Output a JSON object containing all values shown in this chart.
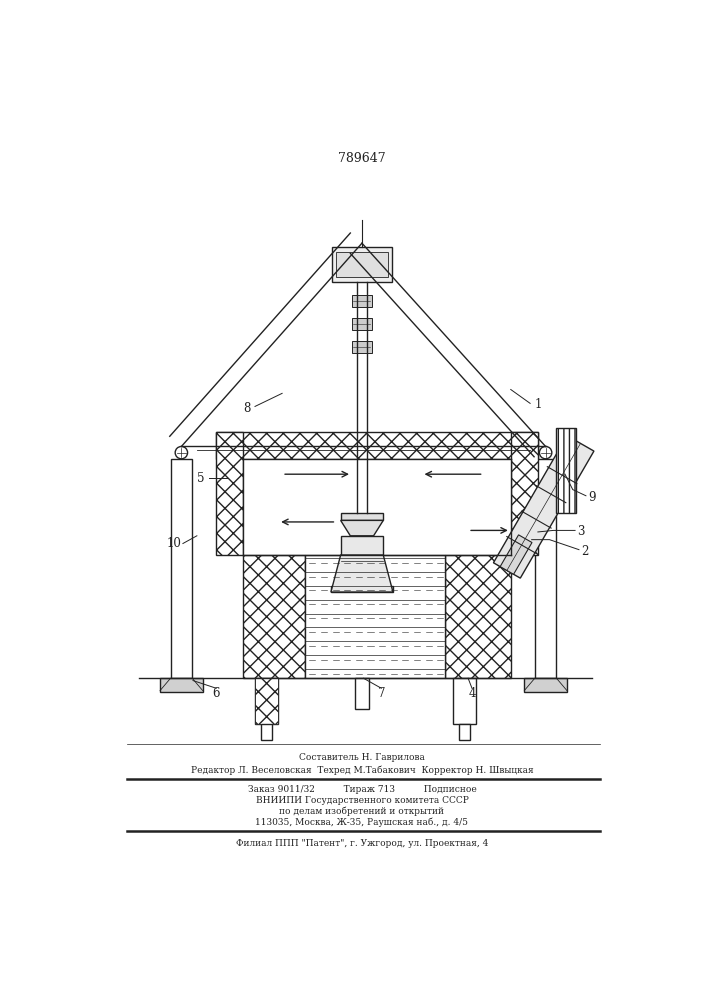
{
  "patent_number": "789647",
  "bg_color": "#ffffff",
  "line_color": "#222222",
  "composer_line": "Составитель Н. Гаврилова",
  "editor_line": "Редактор Л. Веселовская  Техред М.Табакович  Корректор Н. Швыцкая",
  "order_line": "Заказ 9011/32          Тираж 713          Подписное",
  "vniiipi_line": "ВНИИПИ Государственного комитета СССР",
  "affairs_line": "по делам изобретений и открытий",
  "address_line": "113035, Москва, Ж-35, Раушская наб., д. 4/5",
  "filial_line": "Филиал ППП \"Патент\", г. Ужгород, ул. Проектная, 4"
}
